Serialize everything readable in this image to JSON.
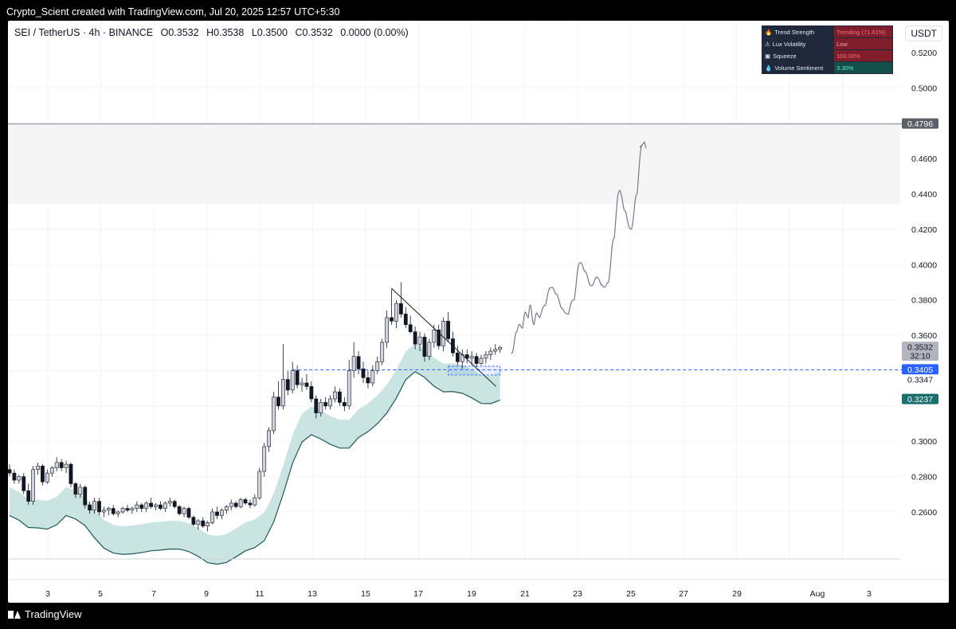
{
  "header": {
    "text": "Crypto_Scient created with TradingView.com, Jul 20, 2025 12:57 UTC+5:30"
  },
  "symbol": {
    "name": "SEI / TetherUS · 4h · BINANCE",
    "open": "O0.3532",
    "high": "H0.3538",
    "low": "L0.3500",
    "close": "C0.3532",
    "change": "0.0000 (0.00%)"
  },
  "currency": "USDT",
  "indicator_table": [
    {
      "icon": "fire-icon",
      "icon_glyph": "🔥",
      "name": "Trend Strength",
      "value": "Trending (71.61%)",
      "bg": "#7f1d2d",
      "fg": "#f87171"
    },
    {
      "icon": "warning-icon",
      "icon_glyph": "⚠",
      "name": "Lux Volatility",
      "value": "Low",
      "bg": "#7f1d2d",
      "fg": "#fca5a5"
    },
    {
      "icon": "squeeze-icon",
      "icon_glyph": "▣",
      "name": "Squeeze",
      "value": "100.00%",
      "bg": "#7f1d2d",
      "fg": "#f87171"
    },
    {
      "icon": "droplet-icon",
      "icon_glyph": "💧",
      "name": "Volume Sentiment",
      "value": "3.30%",
      "bg": "#134e4a",
      "fg": "#5eead4"
    }
  ],
  "footer": {
    "brand": "TradingView"
  },
  "chart_data": {
    "type": "candlestick",
    "y_range": [
      0.245,
      0.53
    ],
    "y_ticks": [
      "0.5200",
      "0.5000",
      "0.4600",
      "0.4400",
      "0.4200",
      "0.4000",
      "0.3800",
      "0.3600",
      "0.3000",
      "0.2800",
      "0.2600"
    ],
    "x_ticks": [
      "3",
      "5",
      "7",
      "9",
      "11",
      "13",
      "15",
      "17",
      "19",
      "21",
      "23",
      "25",
      "27",
      "29",
      "Aug",
      "3"
    ],
    "price_labels": [
      {
        "value": 0.4796,
        "text": "0.4796",
        "bg": "#5d6068",
        "fg": "#ffffff"
      },
      {
        "value": 0.3532,
        "text": "0.3532",
        "sub": "32:10",
        "bg": "#b2b5be",
        "fg": "#131722"
      },
      {
        "value": 0.3405,
        "text": "0.3405",
        "bg": "#2962ff",
        "fg": "#ffffff"
      },
      {
        "value": 0.3347,
        "text": "0.3347",
        "bg": "#ffffff",
        "fg": "#131722"
      },
      {
        "value": 0.3237,
        "text": "0.3237",
        "bg": "#1b6e6e",
        "fg": "#ffffff"
      }
    ],
    "resistance_zone": [
      0.4345,
      0.4796
    ],
    "support_level": 0.3405,
    "candles": [
      [
        0.284,
        0.287,
        0.28,
        0.282
      ],
      [
        0.282,
        0.284,
        0.276,
        0.278
      ],
      [
        0.278,
        0.281,
        0.276,
        0.28
      ],
      [
        0.28,
        0.282,
        0.27,
        0.272
      ],
      [
        0.272,
        0.276,
        0.264,
        0.266
      ],
      [
        0.266,
        0.286,
        0.264,
        0.284
      ],
      [
        0.284,
        0.288,
        0.281,
        0.286
      ],
      [
        0.286,
        0.287,
        0.275,
        0.277
      ],
      [
        0.277,
        0.284,
        0.276,
        0.282
      ],
      [
        0.282,
        0.286,
        0.28,
        0.285
      ],
      [
        0.285,
        0.291,
        0.283,
        0.288
      ],
      [
        0.288,
        0.29,
        0.283,
        0.285
      ],
      [
        0.285,
        0.289,
        0.282,
        0.287
      ],
      [
        0.287,
        0.288,
        0.274,
        0.276
      ],
      [
        0.276,
        0.277,
        0.268,
        0.27
      ],
      [
        0.27,
        0.276,
        0.268,
        0.274
      ],
      [
        0.274,
        0.275,
        0.262,
        0.264
      ],
      [
        0.264,
        0.266,
        0.259,
        0.261
      ],
      [
        0.261,
        0.268,
        0.259,
        0.266
      ],
      [
        0.266,
        0.268,
        0.258,
        0.26
      ],
      [
        0.26,
        0.263,
        0.257,
        0.261
      ],
      [
        0.261,
        0.263,
        0.258,
        0.262
      ],
      [
        0.262,
        0.264,
        0.258,
        0.259
      ],
      [
        0.259,
        0.261,
        0.257,
        0.26
      ],
      [
        0.26,
        0.263,
        0.259,
        0.262
      ],
      [
        0.262,
        0.264,
        0.26,
        0.261
      ],
      [
        0.261,
        0.263,
        0.259,
        0.262
      ],
      [
        0.262,
        0.266,
        0.26,
        0.264
      ],
      [
        0.264,
        0.265,
        0.26,
        0.262
      ],
      [
        0.262,
        0.266,
        0.26,
        0.265
      ],
      [
        0.265,
        0.268,
        0.262,
        0.263
      ],
      [
        0.263,
        0.265,
        0.261,
        0.264
      ],
      [
        0.264,
        0.266,
        0.261,
        0.262
      ],
      [
        0.262,
        0.266,
        0.26,
        0.265
      ],
      [
        0.265,
        0.268,
        0.263,
        0.266
      ],
      [
        0.266,
        0.267,
        0.262,
        0.263
      ],
      [
        0.263,
        0.264,
        0.258,
        0.259
      ],
      [
        0.259,
        0.263,
        0.257,
        0.262
      ],
      [
        0.262,
        0.263,
        0.256,
        0.257
      ],
      [
        0.257,
        0.258,
        0.252,
        0.253
      ],
      [
        0.253,
        0.256,
        0.25,
        0.255
      ],
      [
        0.255,
        0.257,
        0.251,
        0.252
      ],
      [
        0.252,
        0.255,
        0.249,
        0.254
      ],
      [
        0.254,
        0.262,
        0.253,
        0.26
      ],
      [
        0.26,
        0.263,
        0.256,
        0.258
      ],
      [
        0.258,
        0.262,
        0.256,
        0.261
      ],
      [
        0.261,
        0.264,
        0.259,
        0.263
      ],
      [
        0.263,
        0.267,
        0.261,
        0.265
      ],
      [
        0.265,
        0.266,
        0.262,
        0.263
      ],
      [
        0.263,
        0.268,
        0.262,
        0.267
      ],
      [
        0.267,
        0.268,
        0.264,
        0.265
      ],
      [
        0.265,
        0.267,
        0.262,
        0.264
      ],
      [
        0.264,
        0.27,
        0.263,
        0.268
      ],
      [
        0.268,
        0.285,
        0.267,
        0.283
      ],
      [
        0.283,
        0.299,
        0.28,
        0.297
      ],
      [
        0.297,
        0.308,
        0.294,
        0.306
      ],
      [
        0.306,
        0.328,
        0.304,
        0.325
      ],
      [
        0.325,
        0.334,
        0.318,
        0.32
      ],
      [
        0.32,
        0.355,
        0.318,
        0.335
      ],
      [
        0.335,
        0.34,
        0.326,
        0.329
      ],
      [
        0.329,
        0.345,
        0.327,
        0.34
      ],
      [
        0.34,
        0.343,
        0.33,
        0.332
      ],
      [
        0.332,
        0.336,
        0.328,
        0.333
      ],
      [
        0.333,
        0.338,
        0.329,
        0.331
      ],
      [
        0.331,
        0.334,
        0.322,
        0.324
      ],
      [
        0.324,
        0.326,
        0.313,
        0.316
      ],
      [
        0.316,
        0.324,
        0.314,
        0.322
      ],
      [
        0.322,
        0.325,
        0.318,
        0.32
      ],
      [
        0.32,
        0.326,
        0.318,
        0.324
      ],
      [
        0.324,
        0.331,
        0.322,
        0.328
      ],
      [
        0.328,
        0.33,
        0.32,
        0.322
      ],
      [
        0.322,
        0.325,
        0.317,
        0.32
      ],
      [
        0.32,
        0.346,
        0.318,
        0.34
      ],
      [
        0.34,
        0.356,
        0.336,
        0.348
      ],
      [
        0.348,
        0.351,
        0.338,
        0.341
      ],
      [
        0.341,
        0.345,
        0.333,
        0.336
      ],
      [
        0.336,
        0.34,
        0.33,
        0.333
      ],
      [
        0.333,
        0.343,
        0.331,
        0.34
      ],
      [
        0.34,
        0.348,
        0.338,
        0.345
      ],
      [
        0.345,
        0.358,
        0.343,
        0.356
      ],
      [
        0.356,
        0.374,
        0.353,
        0.37
      ],
      [
        0.37,
        0.386,
        0.366,
        0.368
      ],
      [
        0.368,
        0.38,
        0.364,
        0.378
      ],
      [
        0.378,
        0.39,
        0.37,
        0.372
      ],
      [
        0.372,
        0.376,
        0.364,
        0.366
      ],
      [
        0.366,
        0.371,
        0.361,
        0.362
      ],
      [
        0.362,
        0.365,
        0.352,
        0.355
      ],
      [
        0.355,
        0.362,
        0.351,
        0.359
      ],
      [
        0.359,
        0.361,
        0.345,
        0.348
      ],
      [
        0.348,
        0.358,
        0.346,
        0.356
      ],
      [
        0.356,
        0.366,
        0.353,
        0.363
      ],
      [
        0.363,
        0.366,
        0.352,
        0.354
      ],
      [
        0.354,
        0.37,
        0.351,
        0.368
      ],
      [
        0.368,
        0.373,
        0.356,
        0.358
      ],
      [
        0.358,
        0.362,
        0.348,
        0.35
      ],
      [
        0.35,
        0.354,
        0.343,
        0.345
      ],
      [
        0.345,
        0.352,
        0.341,
        0.349
      ],
      [
        0.349,
        0.352,
        0.344,
        0.347
      ],
      [
        0.347,
        0.351,
        0.343,
        0.348
      ],
      [
        0.348,
        0.35,
        0.342,
        0.344
      ],
      [
        0.344,
        0.349,
        0.343,
        0.347
      ],
      [
        0.347,
        0.351,
        0.344,
        0.349
      ],
      [
        0.349,
        0.353,
        0.346,
        0.351
      ],
      [
        0.351,
        0.355,
        0.349,
        0.352
      ],
      [
        0.352,
        0.354,
        0.35,
        0.3532
      ]
    ],
    "projection": [
      [
        0.35,
        0.348
      ],
      [
        0.362,
        0.37
      ],
      [
        0.364,
        0.38
      ],
      [
        0.37,
        0.388
      ],
      [
        0.366,
        0.378
      ],
      [
        0.37,
        0.375
      ],
      [
        0.377,
        0.385
      ],
      [
        0.387,
        0.388
      ],
      [
        0.383,
        0.38
      ],
      [
        0.375,
        0.372
      ],
      [
        0.372,
        0.379
      ],
      [
        0.38,
        0.39
      ],
      [
        0.401,
        0.402
      ],
      [
        0.396,
        0.393
      ],
      [
        0.388,
        0.388
      ],
      [
        0.393,
        0.392
      ],
      [
        0.388,
        0.385
      ],
      [
        0.39,
        0.4
      ],
      [
        0.415,
        0.434
      ],
      [
        0.442,
        0.438
      ],
      [
        0.43,
        0.422
      ],
      [
        0.42,
        0.425
      ],
      [
        0.44,
        0.46
      ],
      [
        0.468,
        0.466
      ]
    ]
  }
}
